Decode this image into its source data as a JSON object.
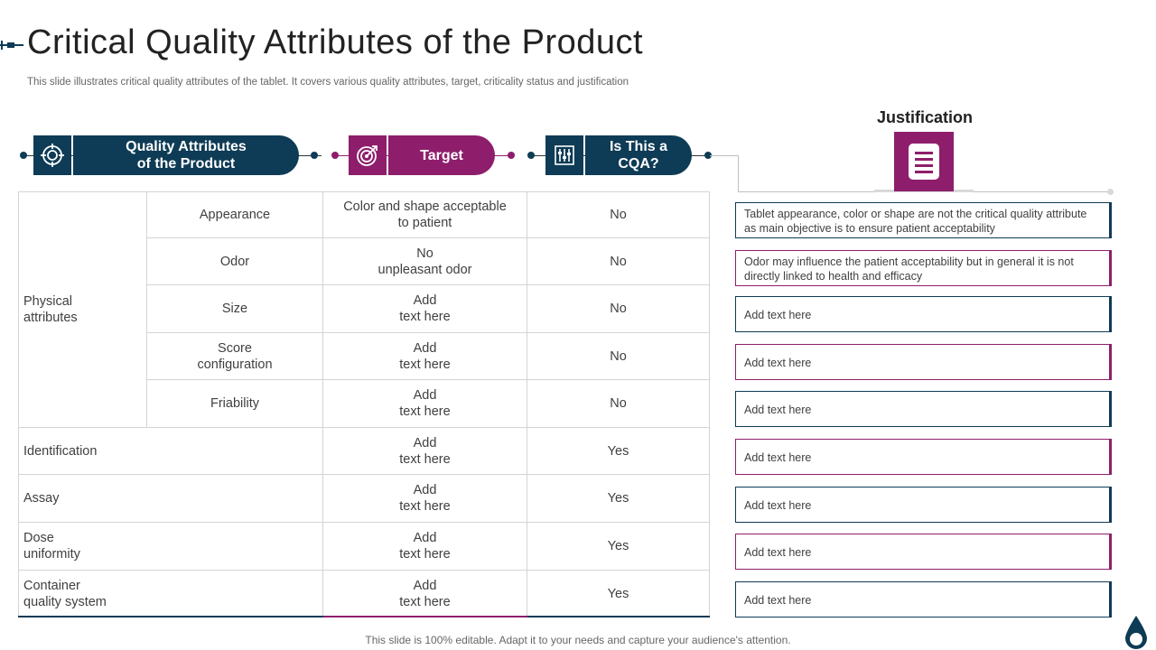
{
  "title": "Critical Quality Attributes of the Product",
  "subtitle": "This slide illustrates critical quality attributes of the tablet. It covers various quality attributes, target, criticality status and justification",
  "headers": {
    "quality": [
      "Quality Attributes",
      "of the Product"
    ],
    "target": "Target",
    "cqa": [
      "Is This a",
      "CQA?"
    ],
    "justification": "Justification"
  },
  "group_label": [
    "Physical",
    "attributes"
  ],
  "rows": [
    {
      "attribute": [
        "Appearance"
      ],
      "target": [
        "Color and shape acceptable",
        "to patient"
      ],
      "cqa": "No"
    },
    {
      "attribute": [
        "Odor"
      ],
      "target": [
        "No",
        "unpleasant odor"
      ],
      "cqa": "No"
    },
    {
      "attribute": [
        "Size"
      ],
      "target": [
        "Add",
        "text here"
      ],
      "cqa": "No"
    },
    {
      "attribute": [
        "Score",
        "configuration"
      ],
      "target": [
        "Add",
        "text here"
      ],
      "cqa": "No"
    },
    {
      "attribute": [
        "Friability"
      ],
      "target": [
        "Add",
        "text here"
      ],
      "cqa": "No"
    },
    {
      "attribute": [
        "Identification"
      ],
      "target": [
        "Add",
        "text here"
      ],
      "cqa": "Yes"
    },
    {
      "attribute": [
        "Assay"
      ],
      "target": [
        "Add",
        "text here"
      ],
      "cqa": "Yes"
    },
    {
      "attribute": [
        "Dose",
        "uniformity"
      ],
      "target": [
        "Add",
        "text here"
      ],
      "cqa": "Yes"
    },
    {
      "attribute": [
        "Container",
        "quality system"
      ],
      "target": [
        "Add",
        "text here"
      ],
      "cqa": "Yes"
    }
  ],
  "justifications": [
    "Tablet appearance, color or shape are not the critical quality attribute as main objective is to ensure patient acceptability",
    "Odor may influence the patient acceptability but in general it is not directly linked to health and efficacy",
    "Add text here",
    "Add text here",
    "Add text here",
    "Add text here",
    "Add text here",
    "Add text here",
    "Add text here"
  ],
  "footer": "This slide is 100% editable. Adapt it to your needs and capture your audience's attention.",
  "colors": {
    "navy": "#0e3b55",
    "plum": "#8e1e6b"
  },
  "icons": [
    "target-gear-icon",
    "bullseye-icon",
    "sliders-icon",
    "document-icon",
    "water-drop-icon"
  ]
}
